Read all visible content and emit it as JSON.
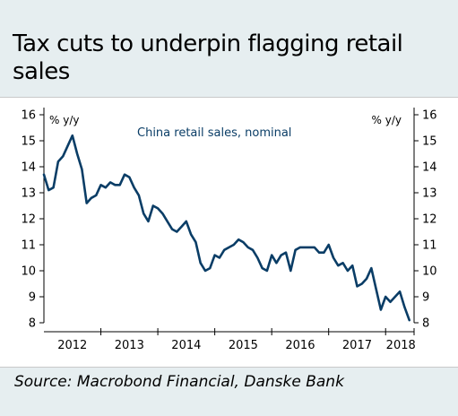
{
  "header": {
    "title": "Tax cuts to underpin flagging retail sales"
  },
  "footer": {
    "source": "Source: Macrobond Financial, Danske Bank"
  },
  "colors": {
    "line": "#0a3d66",
    "band": "#e6eef0",
    "axis": "#000000"
  },
  "chart_data": {
    "type": "line",
    "title": "Tax cuts to underpin flagging retail sales",
    "y_unit_left": "% y/y",
    "y_unit_right": "% y/y",
    "ylim": [
      8,
      16
    ],
    "yticks": [
      8,
      9,
      10,
      11,
      12,
      13,
      14,
      15,
      16
    ],
    "xlim": [
      "2012-01",
      "2018-07"
    ],
    "x_tick_labels": [
      "2012",
      "2013",
      "2014",
      "2015",
      "2016",
      "2017",
      "2018"
    ],
    "grid": false,
    "series": [
      {
        "name": "China retail sales, nominal",
        "color": "#0a3d66",
        "points": [
          [
            "2012-01",
            13.7
          ],
          [
            "2012-02",
            13.1
          ],
          [
            "2012-03",
            13.2
          ],
          [
            "2012-04",
            14.2
          ],
          [
            "2012-05",
            14.4
          ],
          [
            "2012-06",
            14.8
          ],
          [
            "2012-07",
            15.2
          ],
          [
            "2012-08",
            14.5
          ],
          [
            "2012-09",
            13.9
          ],
          [
            "2012-10",
            12.6
          ],
          [
            "2012-11",
            12.8
          ],
          [
            "2012-12",
            12.9
          ],
          [
            "2013-01",
            13.3
          ],
          [
            "2013-02",
            13.2
          ],
          [
            "2013-03",
            13.4
          ],
          [
            "2013-04",
            13.3
          ],
          [
            "2013-05",
            13.3
          ],
          [
            "2013-06",
            13.7
          ],
          [
            "2013-07",
            13.6
          ],
          [
            "2013-08",
            13.2
          ],
          [
            "2013-09",
            12.9
          ],
          [
            "2013-10",
            12.2
          ],
          [
            "2013-11",
            11.9
          ],
          [
            "2013-12",
            12.5
          ],
          [
            "2014-01",
            12.4
          ],
          [
            "2014-02",
            12.2
          ],
          [
            "2014-03",
            11.9
          ],
          [
            "2014-04",
            11.6
          ],
          [
            "2014-05",
            11.5
          ],
          [
            "2014-06",
            11.7
          ],
          [
            "2014-07",
            11.9
          ],
          [
            "2014-08",
            11.4
          ],
          [
            "2014-09",
            11.1
          ],
          [
            "2014-10",
            10.3
          ],
          [
            "2014-11",
            10.0
          ],
          [
            "2014-12",
            10.1
          ],
          [
            "2015-01",
            10.6
          ],
          [
            "2015-02",
            10.5
          ],
          [
            "2015-03",
            10.8
          ],
          [
            "2015-04",
            10.9
          ],
          [
            "2015-05",
            11.0
          ],
          [
            "2015-06",
            11.2
          ],
          [
            "2015-07",
            11.1
          ],
          [
            "2015-08",
            10.9
          ],
          [
            "2015-09",
            10.8
          ],
          [
            "2015-10",
            10.5
          ],
          [
            "2015-11",
            10.1
          ],
          [
            "2015-12",
            10.0
          ],
          [
            "2016-01",
            10.6
          ],
          [
            "2016-02",
            10.3
          ],
          [
            "2016-03",
            10.6
          ],
          [
            "2016-04",
            10.7
          ],
          [
            "2016-05",
            10.0
          ],
          [
            "2016-06",
            10.8
          ],
          [
            "2016-07",
            10.9
          ],
          [
            "2016-08",
            10.9
          ],
          [
            "2016-09",
            10.9
          ],
          [
            "2016-10",
            10.9
          ],
          [
            "2016-11",
            10.7
          ],
          [
            "2016-12",
            10.7
          ],
          [
            "2017-01",
            11.0
          ],
          [
            "2017-02",
            10.5
          ],
          [
            "2017-03",
            10.2
          ],
          [
            "2017-04",
            10.3
          ],
          [
            "2017-05",
            10.0
          ],
          [
            "2017-06",
            10.2
          ],
          [
            "2017-07",
            9.4
          ],
          [
            "2017-08",
            9.5
          ],
          [
            "2017-09",
            9.7
          ],
          [
            "2017-10",
            10.1
          ],
          [
            "2017-11",
            9.3
          ],
          [
            "2017-12",
            8.5
          ],
          [
            "2018-01",
            9.0
          ],
          [
            "2018-02",
            8.8
          ],
          [
            "2018-03",
            9.0
          ],
          [
            "2018-04",
            9.2
          ],
          [
            "2018-05",
            8.6
          ],
          [
            "2018-06",
            8.1
          ]
        ]
      }
    ]
  }
}
